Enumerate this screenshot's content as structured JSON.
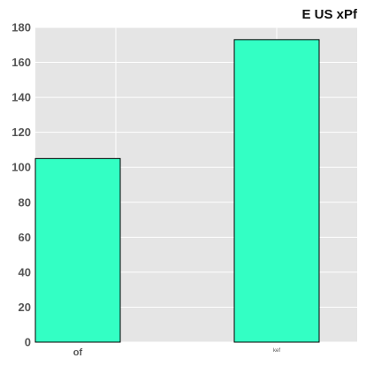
{
  "chart_data": {
    "type": "bar",
    "title": "E US xPf",
    "categories": [
      "of",
      "kef"
    ],
    "values": [
      105,
      173
    ],
    "xlabel": "",
    "ylabel": "",
    "ylim": [
      0,
      180
    ],
    "yticks": [
      0,
      20,
      40,
      60,
      80,
      100,
      120,
      140,
      160,
      180
    ],
    "grid": true,
    "legend": "none",
    "colors": {
      "bar_fill": "#33ffc4",
      "bar_edge": "#000000",
      "plot_background": "#e5e5e5",
      "grid": "#ffffff"
    }
  }
}
